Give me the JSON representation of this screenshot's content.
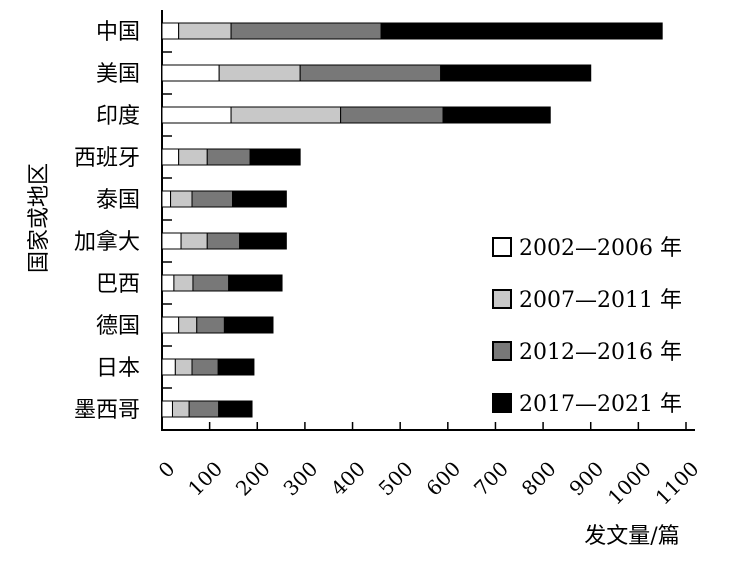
{
  "chart_data": {
    "type": "bar",
    "orientation": "horizontal",
    "stacked": true,
    "categories": [
      "中国",
      "美国",
      "印度",
      "西班牙",
      "泰国",
      "加拿大",
      "巴西",
      "德国",
      "日本",
      "墨西哥"
    ],
    "series": [
      {
        "name": "2002—2006 年",
        "color": "#ffffff",
        "values": [
          35,
          120,
          145,
          35,
          18,
          40,
          25,
          35,
          28,
          22
        ]
      },
      {
        "name": "2007—2011 年",
        "color": "#c8c8c8",
        "values": [
          110,
          170,
          230,
          60,
          45,
          55,
          40,
          38,
          35,
          35
        ]
      },
      {
        "name": "2012—2016 年",
        "color": "#787878",
        "values": [
          315,
          295,
          215,
          90,
          85,
          68,
          75,
          58,
          55,
          62
        ]
      },
      {
        "name": "2017—2021 年",
        "color": "#000000",
        "values": [
          590,
          315,
          225,
          105,
          113,
          98,
          112,
          102,
          75,
          70
        ]
      }
    ],
    "xlabel": "发文量/篇",
    "ylabel": "国家或地区",
    "xlim": [
      0,
      1100
    ],
    "xticks": [
      "0",
      "100",
      "200",
      "300",
      "400",
      "500",
      "600",
      "700",
      "800",
      "900",
      "1000",
      "1100"
    ],
    "legend_position": "right",
    "grid": false
  }
}
